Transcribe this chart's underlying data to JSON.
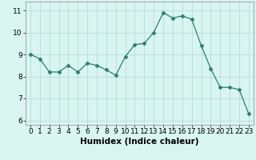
{
  "x": [
    0,
    1,
    2,
    3,
    4,
    5,
    6,
    7,
    8,
    9,
    10,
    11,
    12,
    13,
    14,
    15,
    16,
    17,
    18,
    19,
    20,
    21,
    22,
    23
  ],
  "y": [
    9.0,
    8.8,
    8.2,
    8.2,
    8.5,
    8.2,
    8.6,
    8.5,
    8.3,
    8.05,
    8.9,
    9.45,
    9.5,
    10.0,
    10.9,
    10.65,
    10.75,
    10.6,
    9.4,
    8.35,
    7.5,
    7.5,
    7.4,
    6.3
  ],
  "line_color": "#2e7d6e",
  "marker": "D",
  "marker_size": 2.5,
  "bg_color": "#d8f5f0",
  "grid_color": "#b8ddd6",
  "xlabel": "Humidex (Indice chaleur)",
  "ylabel": "",
  "xlim": [
    -0.5,
    23.5
  ],
  "ylim": [
    5.8,
    11.4
  ],
  "yticks": [
    6,
    7,
    8,
    9,
    10,
    11
  ],
  "xticks": [
    0,
    1,
    2,
    3,
    4,
    5,
    6,
    7,
    8,
    9,
    10,
    11,
    12,
    13,
    14,
    15,
    16,
    17,
    18,
    19,
    20,
    21,
    22,
    23
  ],
  "label_fontsize": 7.5,
  "tick_fontsize": 6.5
}
